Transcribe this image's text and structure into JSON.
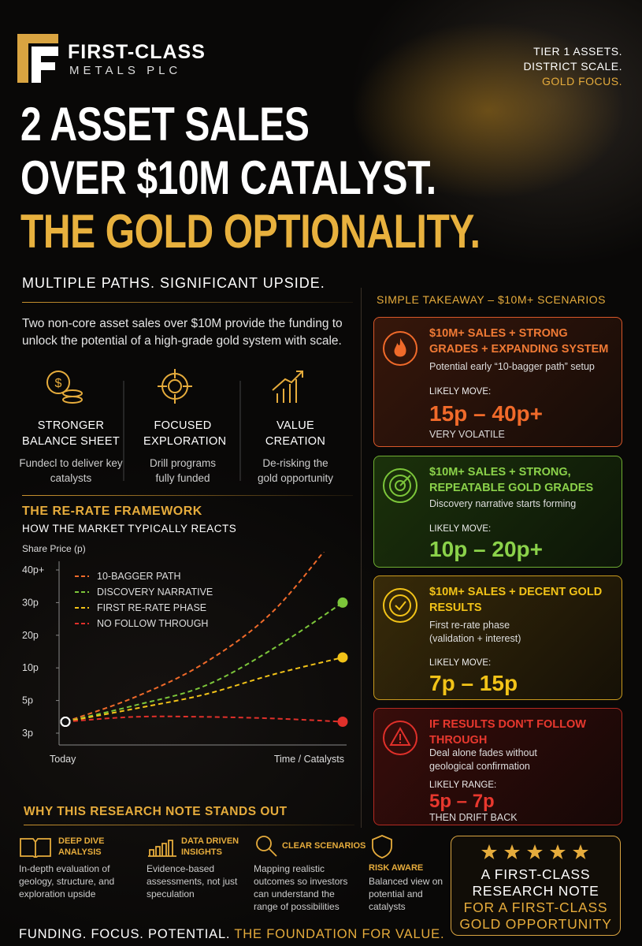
{
  "header": {
    "logo_line1": "FIRST-CLASS",
    "logo_line2": "METALS PLC",
    "tagline": [
      "TIER 1 ASSETS.",
      "DISTRICT SCALE.",
      "GOLD FOCUS."
    ]
  },
  "headline": [
    "2 ASSET SALES",
    "OVER $10M CATALYST.",
    "THE GOLD OPTIONALITY."
  ],
  "subheadline": "MULTIPLE PATHS. SIGNIFICANT UPSIDE.",
  "intro": "Two non-core asset sales over $10M provide the funding to unlock the potential of a high-grade gold system with scale.",
  "pillars": [
    {
      "title": "STRONGER BALANCE SHEET",
      "text": "Fundecl to deliver key catalysts"
    },
    {
      "title": "FOCUSED EXPLORATION",
      "text": "Drill programs fully funded"
    },
    {
      "title": "VALUE CREATION",
      "text": "De-risking the gold opportunity"
    }
  ],
  "framework": {
    "title": "THE RE-RATE FRAMEWORK",
    "subtitle": "HOW THE MARKET TYPICALLY REACTS"
  },
  "chart_data": {
    "type": "line",
    "ylabel": "Share Price (p)",
    "categories": [
      "Today",
      null,
      null,
      null,
      "Time / Catalysts"
    ],
    "ylim": [
      3,
      40
    ],
    "yticks": [
      {
        "value": 3,
        "label": "3p"
      },
      {
        "value": 5,
        "label": "5p"
      },
      {
        "value": 10,
        "label": "10p"
      },
      {
        "value": 20,
        "label": "20p"
      },
      {
        "value": 30,
        "label": "30p"
      },
      {
        "value": 40,
        "label": "40p+"
      }
    ],
    "legend": "upper left",
    "series": [
      {
        "name": "10-BAGGER PATH",
        "color": "#f06a2a",
        "values": [
          3.7,
          5.5,
          11.4,
          27.4,
          53
        ]
      },
      {
        "name": "DISCOVERY NARRATIVE",
        "color": "#7cc63a",
        "values": [
          3.7,
          4.7,
          7.2,
          15.9,
          30
        ]
      },
      {
        "name": "FIRST RE-RATE PHASE",
        "color": "#f2c318",
        "values": [
          3.7,
          4.5,
          5.9,
          9.0,
          13.2
        ]
      },
      {
        "name": "NO FOLLOW THROUGH",
        "color": "#e0302a",
        "values": [
          3.7,
          4.0,
          4.0,
          3.9,
          3.7
        ]
      }
    ]
  },
  "takeaway": {
    "title": "SIMPLE TAKEAWAY – $10M+ SCENARIOS",
    "scenarios": [
      {
        "title": "$10M+ SALES + STRONG GRADES + EXPANDING SYSTEM",
        "desc": "Potential early “10-bagger path” setup",
        "move_label": "LIKELY MOVE:",
        "move": "15p – 40p+",
        "note": "VERY VOLATILE"
      },
      {
        "title": "$10M+ SALES + STRONG, REPEATABLE GOLD GRADES",
        "desc": "Discovery narrative starts forming",
        "move_label": "LIKELY MOVE:",
        "move": "10p – 20p+"
      },
      {
        "title": "$10M+ SALES + DECENT GOLD RESULTS",
        "desc": "First re-rate phase (validation + interest)",
        "move_label": "LIKELY MOVE:",
        "move": "7p – 15p"
      },
      {
        "title": "IF RESULTS DON'T FOLLOW THROUGH",
        "desc": "Deal alone fades without geological confirmation",
        "move_label": "LIKELY RANGE:",
        "move": "5p – 7p",
        "note": "THEN DRIFT BACK"
      }
    ]
  },
  "why": {
    "title": "WHY THIS RESEARCH NOTE STANDS OUT",
    "items": [
      {
        "title": "DEEP DIVE ANALYSIS",
        "text": "In-depth evaluation of geology, structure, and exploration upside"
      },
      {
        "title": "DATA DRIVEN INSIGHTS",
        "text": "Evidence-based assessments, not just speculation"
      },
      {
        "title": "CLEAR SCENARIOS",
        "text": "Mapping realistic outcomes so investors can understand the range of possibilities"
      },
      {
        "title": "RISK AWARE",
        "text": "Balanced view on potential and catalysts"
      }
    ]
  },
  "badge": {
    "lines": [
      "A FIRST-CLASS",
      "RESEARCH NOTE",
      "FOR A FIRST-CLASS",
      "GOLD OPPORTUNITY"
    ]
  },
  "footer": [
    "FUNDING. FOCUS. POTENTIAL.",
    "THE FOUNDATION FOR VALUE."
  ]
}
